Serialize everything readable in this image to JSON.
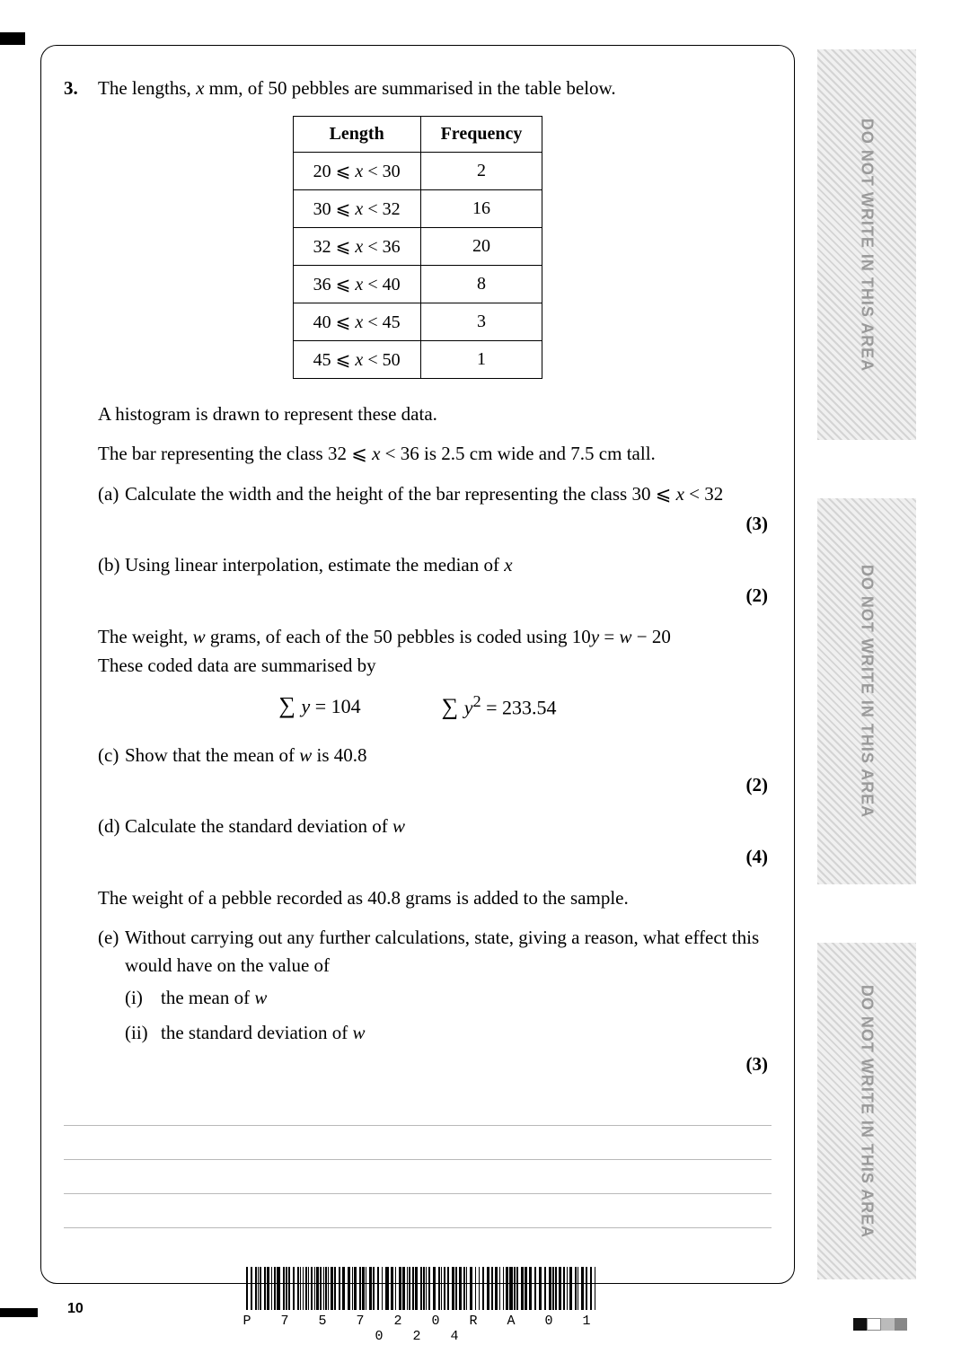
{
  "margin_text": "DO NOT WRITE IN THIS AREA",
  "question": {
    "number": "3.",
    "intro_pre": "The lengths, ",
    "intro_var": "x",
    "intro_unit": " mm, of 50 pebbles are summarised in the table below.",
    "table": {
      "headers": [
        "Length",
        "Frequency"
      ],
      "rows": [
        {
          "range_a": "20",
          "range_b": "30",
          "freq": "2"
        },
        {
          "range_a": "30",
          "range_b": "32",
          "freq": "16"
        },
        {
          "range_a": "32",
          "range_b": "36",
          "freq": "20"
        },
        {
          "range_a": "36",
          "range_b": "40",
          "freq": "8"
        },
        {
          "range_a": "40",
          "range_b": "45",
          "freq": "3"
        },
        {
          "range_a": "45",
          "range_b": "50",
          "freq": "1"
        }
      ]
    },
    "hist_line": "A histogram is drawn to represent these data.",
    "bar_line_pre": "The bar representing the class  32 ⩽ ",
    "bar_line_mid": " < 36  is 2.5 cm wide and 7.5 cm tall.",
    "part_a": {
      "label": "(a)",
      "text_pre": "Calculate the width and the height of the bar representing the class  30 ⩽ ",
      "text_post": " < 32",
      "marks": "(3)"
    },
    "part_b": {
      "label": "(b)",
      "text_pre": "Using linear interpolation, estimate the median of ",
      "marks": "(2)"
    },
    "weight_line1_pre": "The weight, ",
    "weight_line1_mid": " grams, of each of the 50 pebbles is coded using  10",
    "weight_line1_y": "y",
    "weight_line1_eq": " = ",
    "weight_line1_w": "w",
    "weight_line1_post": " − 20",
    "weight_line2": "These coded data are summarised by",
    "eq1_pre": "∑ ",
    "eq1_var": "y",
    "eq1_post": " = 104",
    "eq2_pre": "∑ ",
    "eq2_var": "y",
    "eq2_sup": "2",
    "eq2_post": "  = 233.54",
    "part_c": {
      "label": "(c)",
      "text_pre": "Show that the mean of ",
      "text_post": " is 40.8",
      "marks": "(2)"
    },
    "part_d": {
      "label": "(d)",
      "text_pre": "Calculate the standard deviation of ",
      "marks": "(4)"
    },
    "added_line": "The weight of a pebble recorded as 40.8 grams is added to the sample.",
    "part_e": {
      "label": "(e)",
      "text": "Without carrying out any further calculations, state, giving a reason, what effect this would have on the value of",
      "sub1_label": "(i)",
      "sub1_text_pre": "the mean of ",
      "sub2_label": "(ii)",
      "sub2_text_pre": "the standard deviation of ",
      "marks": "(3)"
    }
  },
  "page_number": "10",
  "barcode_text": "P 7 5 7 2 0 R A 0 1 0 2 4",
  "colors": {
    "text": "#000000",
    "margin_bg_a": "#d4d4d4",
    "margin_bg_b": "#f0f0f0",
    "margin_label": "#9a9a9a",
    "rule": "#b9b9b9"
  }
}
